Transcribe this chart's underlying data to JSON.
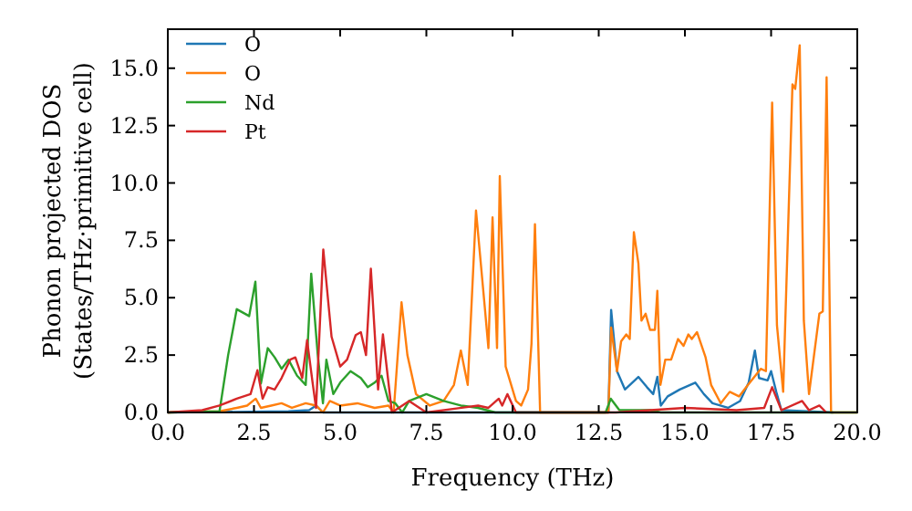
{
  "chart_data": {
    "type": "line",
    "xlabel": "Frequency (THz)",
    "ylabel": "Phonon projected DOS\n(States/THz·primitive cell)",
    "xlim": [
      0,
      20
    ],
    "ylim": [
      0,
      16.7
    ],
    "xticks": [
      {
        "value": 0,
        "label": "0.0"
      },
      {
        "value": 2.5,
        "label": "2.5"
      },
      {
        "value": 5,
        "label": "5.0"
      },
      {
        "value": 7.5,
        "label": "7.5"
      },
      {
        "value": 10,
        "label": "10.0"
      },
      {
        "value": 12.5,
        "label": "12.5"
      },
      {
        "value": 15,
        "label": "15.0"
      },
      {
        "value": 17.5,
        "label": "17.5"
      },
      {
        "value": 20,
        "label": "20.0"
      }
    ],
    "yticks": [
      {
        "value": 0,
        "label": "0.0"
      },
      {
        "value": 2.5,
        "label": "2.5"
      },
      {
        "value": 5,
        "label": "5.0"
      },
      {
        "value": 7.5,
        "label": "7.5"
      },
      {
        "value": 10,
        "label": "10.0"
      },
      {
        "value": 12.5,
        "label": "12.5"
      },
      {
        "value": 15,
        "label": "15.0"
      }
    ],
    "legend": "top left",
    "grid": false,
    "series": [
      {
        "name": "O",
        "color": "#1f77b4",
        "x": [
          0,
          3.5,
          4.1,
          4.3,
          4.5,
          12.7,
          12.78,
          12.86,
          13.03,
          13.26,
          13.65,
          13.9,
          14.08,
          14.2,
          14.3,
          14.5,
          14.85,
          15.3,
          15.55,
          15.8,
          16.25,
          16.6,
          16.85,
          17.03,
          17.15,
          17.4,
          17.5,
          17.65,
          17.8,
          19.3
        ],
        "values": [
          0,
          0.05,
          0.1,
          0.3,
          0,
          0,
          0,
          4.47,
          1.8,
          1.0,
          1.55,
          1.1,
          0.8,
          1.55,
          0.3,
          0.7,
          1.0,
          1.3,
          0.8,
          0.4,
          0.2,
          0.5,
          1.3,
          2.7,
          1.5,
          1.4,
          1.8,
          0.9,
          0.1,
          0
        ]
      },
      {
        "name": "O",
        "color": "#ff7f0e",
        "x": [
          0,
          1.5,
          2,
          2.3,
          2.55,
          2.7,
          3,
          3.3,
          3.6,
          4,
          4.3,
          4.5,
          4.7,
          5,
          5.5,
          6,
          6.4,
          6.55,
          6.78,
          6.95,
          7.2,
          7.6,
          8,
          8.3,
          8.5,
          8.7,
          8.94,
          9.2,
          9.3,
          9.42,
          9.55,
          9.63,
          9.8,
          10.1,
          10.25,
          10.45,
          10.55,
          10.65,
          10.8,
          12.7,
          12.78,
          12.86,
          13.03,
          13.15,
          13.3,
          13.4,
          13.52,
          13.65,
          13.74,
          13.86,
          13.99,
          14.13,
          14.2,
          14.29,
          14.43,
          14.6,
          14.8,
          14.96,
          15.1,
          15.2,
          15.35,
          15.6,
          15.76,
          16.04,
          16.3,
          16.57,
          16.83,
          17.2,
          17.35,
          17.53,
          17.67,
          17.85,
          18.12,
          18.2,
          18.33,
          18.45,
          18.6,
          18.9,
          19,
          19.11,
          19.24,
          20
        ],
        "values": [
          0,
          0.05,
          0.2,
          0.3,
          0.6,
          0.2,
          0.3,
          0.4,
          0.2,
          0.4,
          0.3,
          0,
          0.5,
          0.3,
          0.4,
          0.2,
          0.3,
          0,
          4.8,
          2.5,
          0.8,
          0.3,
          0.5,
          1.2,
          2.7,
          1.2,
          8.8,
          4.5,
          2.8,
          8.5,
          2.8,
          10.3,
          2,
          0.5,
          0.3,
          1,
          3,
          8.2,
          0,
          0,
          0,
          3.7,
          1.8,
          3.1,
          3.4,
          3.2,
          7.85,
          6.5,
          4,
          4.3,
          3.6,
          3.6,
          5.3,
          1.2,
          2.3,
          2.3,
          3.2,
          2.9,
          3.4,
          3.2,
          3.5,
          2.4,
          1.2,
          0.4,
          0.9,
          0.7,
          1.2,
          1.9,
          1.8,
          13.5,
          3.8,
          0.9,
          14.3,
          14.1,
          16,
          4,
          0.8,
          4.3,
          4.4,
          14.6,
          0,
          0
        ]
      },
      {
        "name": "Nd",
        "color": "#2ca02c",
        "x": [
          0,
          1.5,
          1.75,
          2,
          2.36,
          2.54,
          2.7,
          2.9,
          3.1,
          3.3,
          3.5,
          3.75,
          4,
          4.16,
          4.35,
          4.5,
          4.6,
          4.8,
          5,
          5.3,
          5.6,
          5.8,
          6,
          6.2,
          6.4,
          6.6,
          6.8,
          7,
          7.5,
          8,
          8.5,
          9,
          9.5,
          12.7,
          12.85,
          13.1,
          14,
          14.3,
          20
        ],
        "values": [
          0,
          0.05,
          2.5,
          4.5,
          4.2,
          5.7,
          1.26,
          2.8,
          2.4,
          1.9,
          2.3,
          1.6,
          1.2,
          6.05,
          2.5,
          0.4,
          2.3,
          0.8,
          1.3,
          1.8,
          1.5,
          1.1,
          1.3,
          1.6,
          0.5,
          0.4,
          0,
          0.5,
          0.8,
          0.5,
          0.3,
          0.2,
          0,
          0,
          0.6,
          0.1,
          0.1,
          0,
          0
        ]
      },
      {
        "name": "Pt",
        "color": "#d62728",
        "x": [
          0,
          1,
          1.5,
          2,
          2.4,
          2.6,
          2.75,
          2.9,
          3.1,
          3.3,
          3.55,
          3.7,
          3.9,
          4.04,
          4.2,
          4.3,
          4.51,
          4.75,
          5,
          5.2,
          5.45,
          5.6,
          5.75,
          5.89,
          6.1,
          6.24,
          6.5,
          7,
          7.5,
          9,
          9.3,
          9.6,
          9.7,
          9.85,
          10.1,
          13,
          15,
          16.5,
          17.3,
          17.53,
          17.8,
          18.4,
          18.6,
          18.9,
          19.1
        ],
        "values": [
          0,
          0.1,
          0.3,
          0.6,
          0.8,
          1.84,
          0.6,
          1.1,
          1,
          1.5,
          2.3,
          2.4,
          1.5,
          3.15,
          1.3,
          0.2,
          7.1,
          3.3,
          2,
          2.3,
          3.37,
          3.5,
          2.5,
          6.26,
          1,
          3.4,
          0,
          0.5,
          0,
          0.3,
          0.2,
          0.6,
          0.3,
          0.8,
          0,
          0,
          0.2,
          0.1,
          0.2,
          1.1,
          0.1,
          0.5,
          0.1,
          0.3,
          0
        ]
      }
    ]
  }
}
